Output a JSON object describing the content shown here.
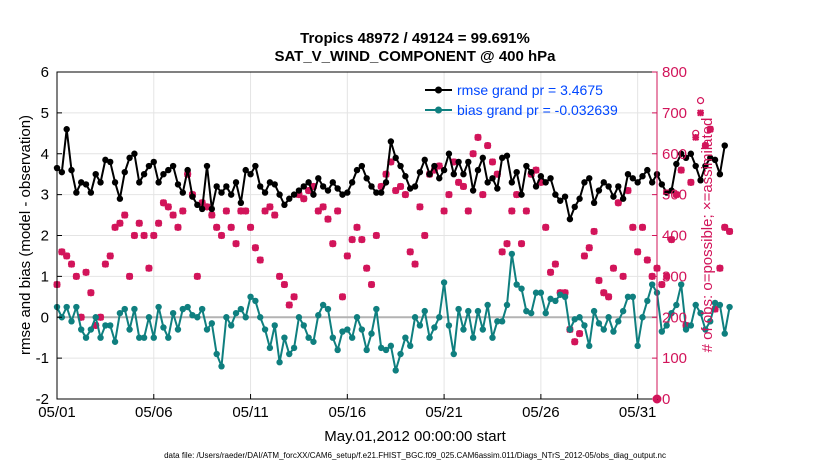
{
  "colors": {
    "rmse": "#000000",
    "bias": "#0f7f7f",
    "obs": "#d2145a",
    "legend_text": "#0047ff",
    "grid": "#e4e4e4",
    "zero_line": "#b3b3b3"
  },
  "chart_data": {
    "type": "line",
    "title": [
      "Tropics 48972 / 49124 = 99.691%",
      "SAT_V_WIND_COMPONENT @ 400 hPa"
    ],
    "xlabel": "May.01,2012 00:00:00 start",
    "ylabel_left": "rmse and bias (model - observation)",
    "ylabel_right": "# of obs: o=possible; ×=assimilated",
    "x_tick_labels": [
      "05/01",
      "05/06",
      "05/11",
      "05/16",
      "05/21",
      "05/26",
      "05/31"
    ],
    "x_ticks_day": [
      1,
      6,
      11,
      16,
      21,
      26,
      31
    ],
    "xlim": [
      1,
      32
    ],
    "ylim_left": [
      -2,
      6
    ],
    "y_ticks_left": [
      "-2",
      "-1",
      "0",
      "1",
      "2",
      "3",
      "4",
      "5",
      "6"
    ],
    "ylim_right": [
      0,
      800
    ],
    "y_ticks_right": [
      "0",
      "100",
      "200",
      "300",
      "400",
      "500",
      "600",
      "700",
      "800"
    ],
    "legend": {
      "position": "top-right",
      "entries": [
        "rmse grand pr = 3.4675",
        "bias grand pr = -0.032639"
      ]
    },
    "series": [
      {
        "name": "rmse",
        "start_day": 1.0,
        "step_day": 0.25,
        "values": [
          3.65,
          3.55,
          4.6,
          3.6,
          3.05,
          3.3,
          3.25,
          3.05,
          3.5,
          3.3,
          3.85,
          3.8,
          3.3,
          2.9,
          3.55,
          3.9,
          4.0,
          3.3,
          3.5,
          3.7,
          3.8,
          3.3,
          3.5,
          3.6,
          3.7,
          3.25,
          3.05,
          3.6,
          2.95,
          2.75,
          2.65,
          3.7,
          2.65,
          3.2,
          3.05,
          3.2,
          3.0,
          3.3,
          2.8,
          3.6,
          3.5,
          3.7,
          3.2,
          3.05,
          3.3,
          3.25,
          3.0,
          2.75,
          2.9,
          3.0,
          3.1,
          3.2,
          3.3,
          3.0,
          3.4,
          3.2,
          3.1,
          3.3,
          3.15,
          3.0,
          3.05,
          3.3,
          3.6,
          3.7,
          3.4,
          3.2,
          3.05,
          3.05,
          3.3,
          4.3,
          3.9,
          3.7,
          3.45,
          3.15,
          3.2,
          3.55,
          3.85,
          3.5,
          3.7,
          3.4,
          3.6,
          4.0,
          3.5,
          3.8,
          3.5,
          3.8,
          3.1,
          3.6,
          3.9,
          3.3,
          3.4,
          3.15,
          3.9,
          3.95,
          3.3,
          3.55,
          3.0,
          3.7,
          3.55,
          3.2,
          3.45,
          3.3,
          3.4,
          3.0,
          2.85,
          2.95,
          2.4,
          2.7,
          2.9,
          3.3,
          3.4,
          2.8,
          3.1,
          3.3,
          3.2,
          2.95,
          3.2,
          2.9,
          3.5,
          3.4,
          3.3,
          3.45,
          3.6,
          3.3,
          3.5,
          3.25,
          3.05,
          3.1,
          3.75,
          4.0,
          3.9,
          4.0,
          3.7,
          3.35,
          3.7,
          3.9,
          3.85,
          3.5,
          4.2
        ]
      },
      {
        "name": "bias",
        "start_day": 1.0,
        "step_day": 0.25,
        "values": [
          0.25,
          0.0,
          0.25,
          -0.1,
          0.25,
          -0.3,
          -0.5,
          -0.3,
          0.0,
          -0.5,
          -0.2,
          -0.2,
          -0.6,
          0.1,
          0.2,
          -0.3,
          0.2,
          -0.5,
          -0.5,
          0.0,
          -0.5,
          0.25,
          -0.25,
          -0.5,
          0.1,
          -0.3,
          0.2,
          0.25,
          0.05,
          0.0,
          0.2,
          -0.3,
          -0.15,
          -0.9,
          -1.2,
          0.0,
          -0.2,
          0.1,
          0.2,
          0.0,
          0.5,
          0.4,
          0.0,
          -0.3,
          -0.75,
          -0.2,
          -1.1,
          -0.5,
          -0.9,
          -0.75,
          0.0,
          -0.2,
          -0.5,
          -0.6,
          0.05,
          0.3,
          0.2,
          -0.5,
          -0.8,
          -0.35,
          -0.3,
          -0.5,
          0.0,
          -0.3,
          -0.8,
          -0.4,
          0.2,
          -0.75,
          -0.8,
          -0.7,
          -1.3,
          -0.9,
          -0.5,
          -0.7,
          0.0,
          -0.2,
          0.15,
          -0.5,
          -0.25,
          0.0,
          0.85,
          -0.2,
          -0.9,
          0.2,
          -0.3,
          0.15,
          -0.5,
          0.15,
          -0.3,
          0.3,
          -0.5,
          -0.1,
          -0.1,
          0.3,
          1.55,
          0.8,
          0.7,
          0.15,
          0.1,
          0.6,
          0.6,
          0.1,
          0.45,
          0.4,
          0.55,
          0.5,
          -0.3,
          -0.05,
          0.0,
          -0.2,
          -0.7,
          0.15,
          -0.15,
          -0.3,
          0.0,
          -0.35,
          -0.1,
          0.15,
          0.5,
          0.5,
          -0.7,
          0.0,
          0.4,
          0.8,
          0.6,
          -0.35,
          -0.2,
          0.1,
          0.3,
          0.8,
          -0.3,
          -0.2,
          0.3,
          0.1,
          -0.3,
          -0.1,
          0.35,
          0.3,
          -0.4,
          0.25
        ]
      },
      {
        "name": "obs_assimilated",
        "start_day": 1.0,
        "step_day": 0.25,
        "values": [
          280,
          360,
          350,
          330,
          300,
          200,
          310,
          260,
          180,
          200,
          330,
          350,
          420,
          430,
          450,
          300,
          400,
          430,
          400,
          320,
          400,
          430,
          480,
          470,
          450,
          420,
          460,
          550,
          500,
          300,
          480,
          470,
          450,
          420,
          400,
          460,
          420,
          380,
          460,
          460,
          420,
          370,
          340,
          460,
          470,
          450,
          300,
          280,
          230,
          250,
          500,
          490,
          510,
          520,
          460,
          470,
          440,
          380,
          460,
          250,
          350,
          390,
          420,
          390,
          320,
          280,
          400,
          520,
          550,
          580,
          510,
          520,
          500,
          360,
          330,
          470,
          400,
          550,
          560,
          570,
          460,
          500,
          580,
          530,
          520,
          460,
          600,
          640,
          500,
          620,
          580,
          550,
          360,
          380,
          460,
          500,
          380,
          460,
          550,
          560,
          530,
          420,
          310,
          330,
          260,
          260,
          170,
          140,
          160,
          350,
          370,
          410,
          290,
          260,
          250,
          320,
          480,
          300,
          510,
          420,
          360,
          420,
          340,
          300,
          320,
          280,
          300,
          390,
          500,
          560,
          180,
          530,
          640,
          700,
          620,
          660,
          220,
          320,
          420,
          410
        ]
      },
      {
        "name": "obs_possible",
        "start_day": 1.0,
        "step_day": 0.25,
        "values": [
          280,
          360,
          350,
          330,
          300,
          200,
          310,
          260,
          180,
          200,
          330,
          350,
          420,
          430,
          450,
          300,
          400,
          430,
          400,
          320,
          400,
          430,
          480,
          470,
          450,
          420,
          460,
          550,
          500,
          300,
          480,
          470,
          450,
          420,
          400,
          460,
          420,
          380,
          460,
          460,
          420,
          370,
          340,
          460,
          470,
          450,
          300,
          280,
          230,
          250,
          500,
          490,
          510,
          520,
          460,
          470,
          440,
          380,
          460,
          250,
          350,
          390,
          420,
          390,
          320,
          280,
          400,
          520,
          550,
          580,
          510,
          520,
          500,
          360,
          330,
          470,
          400,
          550,
          560,
          570,
          460,
          500,
          580,
          530,
          520,
          460,
          600,
          640,
          500,
          620,
          580,
          550,
          360,
          380,
          460,
          500,
          380,
          460,
          550,
          560,
          530,
          420,
          310,
          330,
          260,
          260,
          170,
          140,
          160,
          350,
          370,
          410,
          290,
          260,
          250,
          320,
          480,
          300,
          510,
          420,
          360,
          420,
          340,
          300,
          320,
          280,
          300,
          390,
          500,
          560,
          180,
          530,
          650,
          730,
          620,
          660,
          220,
          320,
          420,
          410
        ]
      }
    ],
    "grid": true
  },
  "footer": {
    "data_file": "data file: /Users/raeder/DAI/ATM_forcXX/CAM6_setup/f.e21.FHIST_BGC.f09_025.CAM6assim.011/Diags_NTrS_2012-05/obs_diag_output.nc"
  }
}
